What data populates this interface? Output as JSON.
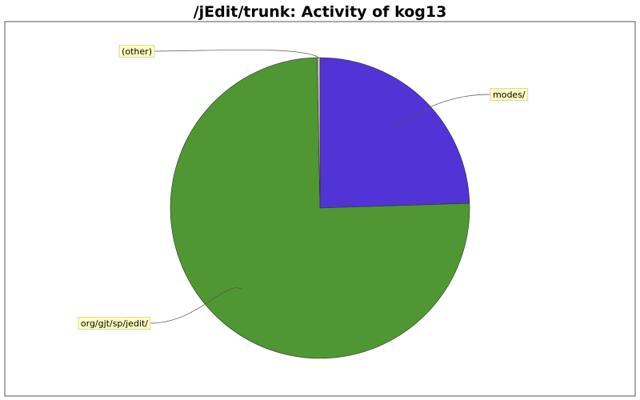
{
  "title": "/jEdit/trunk: Activity of kog13",
  "chart_data": {
    "type": "pie",
    "title": "/jEdit/trunk: Activity of kog13",
    "slices": [
      {
        "label": "modes/",
        "value": 24.5,
        "color": "#5233d5"
      },
      {
        "label": "org/gjt/sp/jedit/",
        "value": 75.2,
        "color": "#509632"
      },
      {
        "label": "(other)",
        "value": 0.3,
        "color": "#c0c0c0"
      }
    ],
    "start_angle": "12 o'clock",
    "direction": "clockwise",
    "legend": "none (callout labels)"
  }
}
